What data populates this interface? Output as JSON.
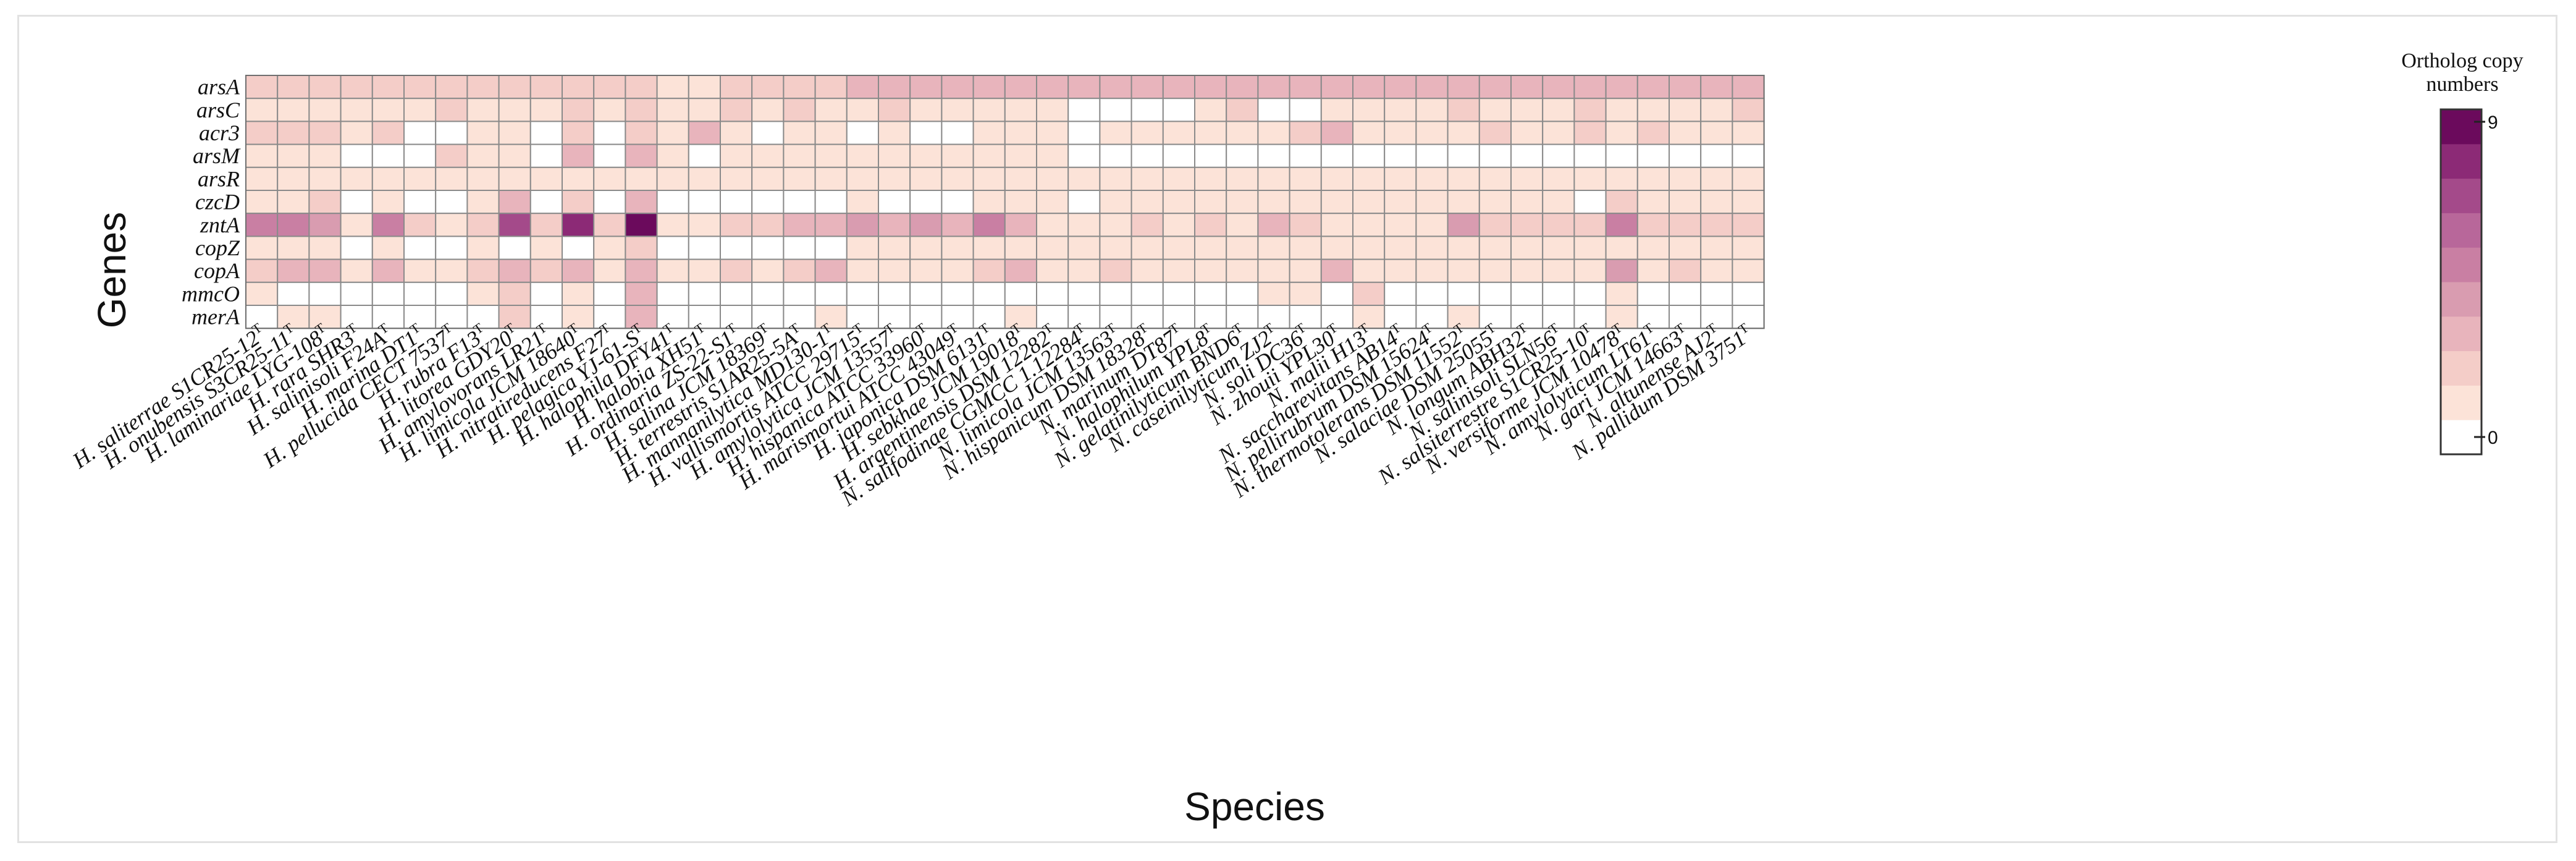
{
  "chart_data": {
    "type": "heatmap",
    "xlabel": "Species",
    "ylabel": "Genes",
    "rows": [
      "arsA",
      "arsC",
      "acr3",
      "arsM",
      "arsR",
      "czcD",
      "zntA",
      "copZ",
      "copA",
      "mmcO",
      "merA"
    ],
    "columns": [
      "H. saliterrae S1CR25-12",
      "H. onubensis S3CR25-11",
      "H. laminariae LYG-108",
      "H. rara SHR3",
      "H. salinisoli F24A",
      "H. marina DT1",
      "H. pellucida CECT 7537",
      "H. rubra F13",
      "H. litorea GDY20",
      "H. amylovorans LR21",
      "H. limicola JCM 18640",
      "H. nitratireducens F27",
      "H. pelagica YJ-61-S",
      "H. halophila DFY41",
      "H. halobia XH51",
      "H. ordinaria ZS-22-S1",
      "H. salina JCM 18369",
      "H. terrestris S1AR25-5A",
      "H. mannanilytica MD130-1",
      "H. vallismortis ATCC 29715",
      "H. amylolytica JCM 13557",
      "H. hispanica ATCC 33960",
      "H. marismortui ATCC 43049",
      "H. japonica DSM 6131",
      "H. sebkhae JCM 19018",
      "H. argentinensis DSM 12282",
      "N. salifodinae CGMCC 1.12284",
      "N. limicola JCM 13563",
      "N. hispanicum DSM 18328",
      "N. marinum DT87",
      "N. halophilum YPL8",
      "N. gelatinilyticum BND6",
      "N. caseinilyticum ZJ2",
      "N. soli DC36",
      "N. zhouii YPL30",
      "N. malii H13",
      "N. saccharevitans AB14",
      "N. pellirubrum DSM 15624",
      "N. thermotolerans DSM 11552",
      "N. salaciae DSM 25055",
      "N. longum ABH32",
      "N. salinisoli SLN56",
      "N. salsiterrestre S1CR25-10",
      "N. versiforme JCM 10478",
      "N. amylolyticum LT61",
      "N. gari JCM 14663",
      "N. altunense AJ2",
      "N. pallidum DSM 3751"
    ],
    "column_superscript": "T",
    "values": [
      [
        2,
        2,
        2,
        2,
        2,
        2,
        2,
        2,
        2,
        2,
        2,
        2,
        2,
        1,
        1,
        2,
        2,
        2,
        2,
        3,
        3,
        3,
        3,
        3,
        3,
        3,
        3,
        3,
        3,
        3,
        3,
        3,
        3,
        3,
        3,
        3,
        3,
        3,
        3,
        3,
        3,
        3,
        3,
        3,
        3,
        3,
        3,
        3
      ],
      [
        1,
        1,
        1,
        1,
        1,
        1,
        2,
        1,
        1,
        1,
        2,
        1,
        2,
        1,
        1,
        2,
        1,
        2,
        1,
        1,
        2,
        1,
        1,
        1,
        1,
        1,
        0,
        0,
        0,
        0,
        1,
        2,
        0,
        0,
        1,
        1,
        1,
        1,
        2,
        1,
        1,
        1,
        2,
        1,
        1,
        1,
        1,
        2
      ],
      [
        2,
        2,
        2,
        1,
        2,
        0,
        0,
        1,
        1,
        0,
        2,
        0,
        2,
        1,
        3,
        1,
        0,
        1,
        1,
        0,
        1,
        0,
        0,
        1,
        1,
        1,
        0,
        1,
        1,
        1,
        1,
        1,
        1,
        2,
        3,
        1,
        1,
        1,
        1,
        2,
        1,
        1,
        2,
        1,
        2,
        1,
        1,
        1
      ],
      [
        1,
        1,
        1,
        0,
        0,
        0,
        2,
        1,
        1,
        0,
        3,
        0,
        3,
        1,
        0,
        1,
        1,
        1,
        1,
        1,
        1,
        1,
        1,
        1,
        1,
        1,
        0,
        0,
        0,
        0,
        0,
        0,
        0,
        0,
        0,
        0,
        0,
        0,
        0,
        0,
        0,
        0,
        0,
        0,
        0,
        0,
        0,
        0
      ],
      [
        1,
        1,
        1,
        1,
        1,
        1,
        1,
        1,
        1,
        1,
        1,
        1,
        1,
        1,
        1,
        1,
        1,
        1,
        1,
        1,
        1,
        1,
        1,
        1,
        1,
        1,
        1,
        1,
        1,
        1,
        1,
        1,
        1,
        1,
        1,
        1,
        1,
        1,
        1,
        1,
        1,
        1,
        1,
        1,
        1,
        1,
        1,
        1
      ],
      [
        1,
        1,
        2,
        0,
        1,
        0,
        0,
        1,
        3,
        0,
        2,
        0,
        3,
        0,
        0,
        0,
        0,
        0,
        0,
        1,
        0,
        0,
        0,
        1,
        1,
        1,
        0,
        1,
        1,
        1,
        1,
        1,
        1,
        1,
        1,
        1,
        1,
        1,
        1,
        1,
        1,
        1,
        0,
        2,
        1,
        1,
        1,
        1
      ],
      [
        5,
        5,
        4,
        1,
        5,
        2,
        1,
        2,
        7,
        2,
        8,
        2,
        9,
        1,
        1,
        2,
        2,
        3,
        3,
        4,
        3,
        4,
        3,
        5,
        3,
        1,
        1,
        1,
        2,
        1,
        2,
        1,
        3,
        2,
        1,
        1,
        1,
        1,
        4,
        2,
        2,
        2,
        2,
        5,
        2,
        2,
        2,
        2
      ],
      [
        1,
        1,
        1,
        0,
        1,
        0,
        0,
        1,
        0,
        1,
        0,
        1,
        2,
        0,
        0,
        0,
        0,
        0,
        0,
        1,
        1,
        1,
        1,
        1,
        1,
        1,
        1,
        1,
        1,
        1,
        1,
        1,
        1,
        1,
        1,
        1,
        1,
        1,
        1,
        1,
        1,
        1,
        1,
        1,
        1,
        1,
        1,
        1
      ],
      [
        2,
        3,
        3,
        1,
        3,
        1,
        1,
        2,
        3,
        2,
        3,
        1,
        3,
        1,
        1,
        2,
        1,
        2,
        3,
        1,
        1,
        1,
        1,
        2,
        3,
        1,
        1,
        2,
        1,
        1,
        1,
        1,
        1,
        1,
        3,
        1,
        1,
        1,
        1,
        1,
        1,
        1,
        1,
        4,
        1,
        2,
        1,
        1
      ],
      [
        1,
        0,
        0,
        0,
        0,
        0,
        0,
        1,
        2,
        0,
        1,
        0,
        3,
        0,
        0,
        0,
        0,
        0,
        0,
        0,
        0,
        0,
        0,
        0,
        0,
        0,
        0,
        0,
        0,
        0,
        0,
        0,
        1,
        1,
        0,
        2,
        0,
        0,
        0,
        0,
        0,
        0,
        0,
        1,
        0,
        0,
        0,
        0
      ],
      [
        0,
        1,
        1,
        0,
        0,
        0,
        0,
        0,
        2,
        0,
        1,
        0,
        3,
        0,
        0,
        0,
        0,
        0,
        1,
        0,
        0,
        0,
        0,
        0,
        1,
        0,
        0,
        0,
        0,
        0,
        0,
        0,
        0,
        0,
        0,
        1,
        0,
        0,
        1,
        0,
        0,
        0,
        0,
        1,
        0,
        0,
        0,
        0
      ]
    ],
    "colorbar": {
      "title": "Ortholog copy numbers",
      "min": 0,
      "max": 9,
      "min_label": "0",
      "max_label": "9",
      "colors": [
        "#ffffff",
        "#fce3d8",
        "#f4cdc8",
        "#e8b4bc",
        "#d99cb0",
        "#c97fa3",
        "#b8679a",
        "#a44a8a",
        "#8c2a76",
        "#6b0a5c"
      ]
    }
  }
}
